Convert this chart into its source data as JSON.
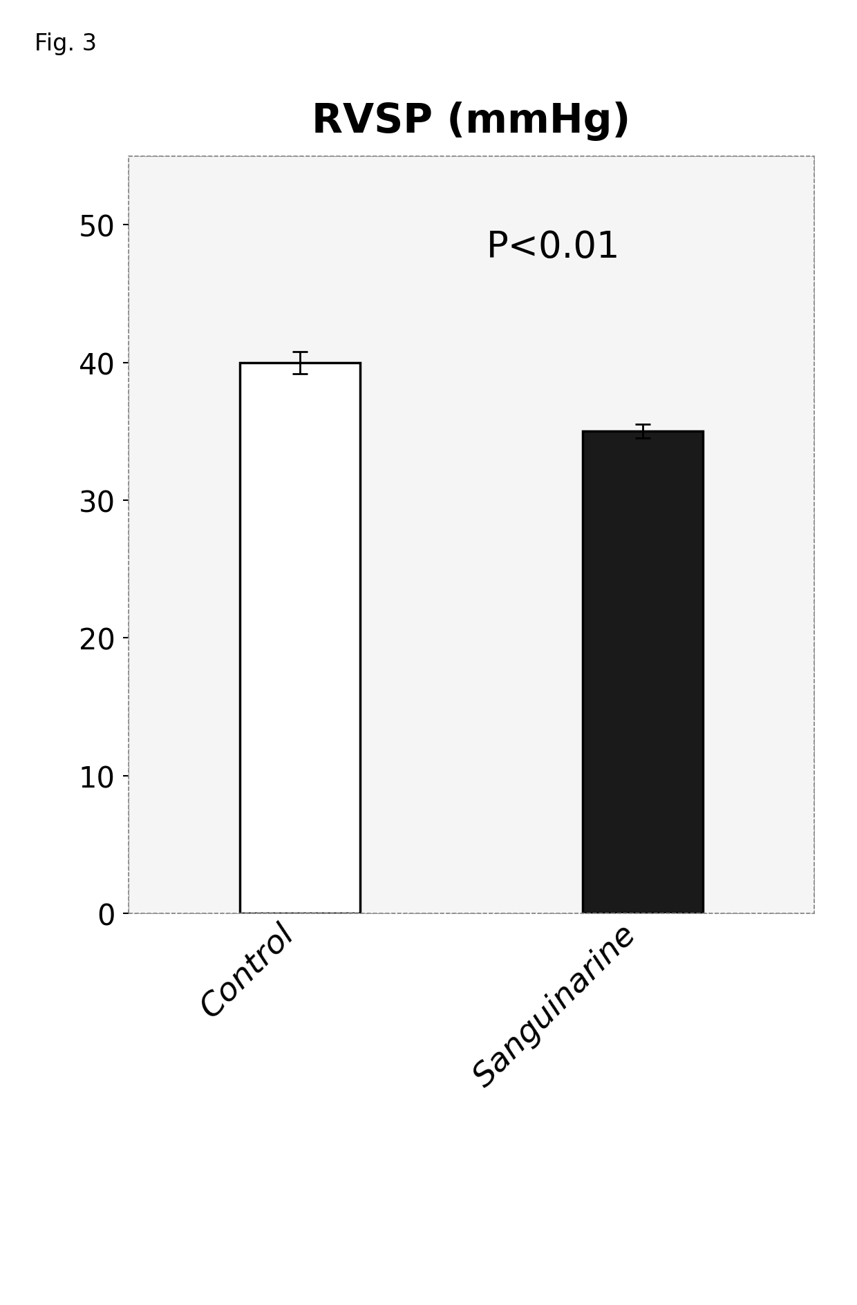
{
  "title": "RVSP (mmHg)",
  "fig_label": "Fig. 3",
  "categories": [
    "Control",
    "Sanguinarine"
  ],
  "values": [
    40.0,
    35.0
  ],
  "errors": [
    0.8,
    0.5
  ],
  "bar_colors": [
    "#ffffff",
    "#1a1a1a"
  ],
  "bar_edge_colors": [
    "#000000",
    "#000000"
  ],
  "ylim": [
    0,
    55
  ],
  "yticks": [
    0,
    10,
    20,
    30,
    40,
    50
  ],
  "annotation": "P<0.01",
  "annotation_fontsize": 38,
  "title_fontsize": 42,
  "tick_fontsize": 30,
  "xtick_fontsize": 34,
  "bar_width": 0.35,
  "background_color": "#ffffff",
  "figure_bg": "#ffffff",
  "panel_bg": "#f5f5f5",
  "error_capsize": 8,
  "error_linewidth": 2
}
